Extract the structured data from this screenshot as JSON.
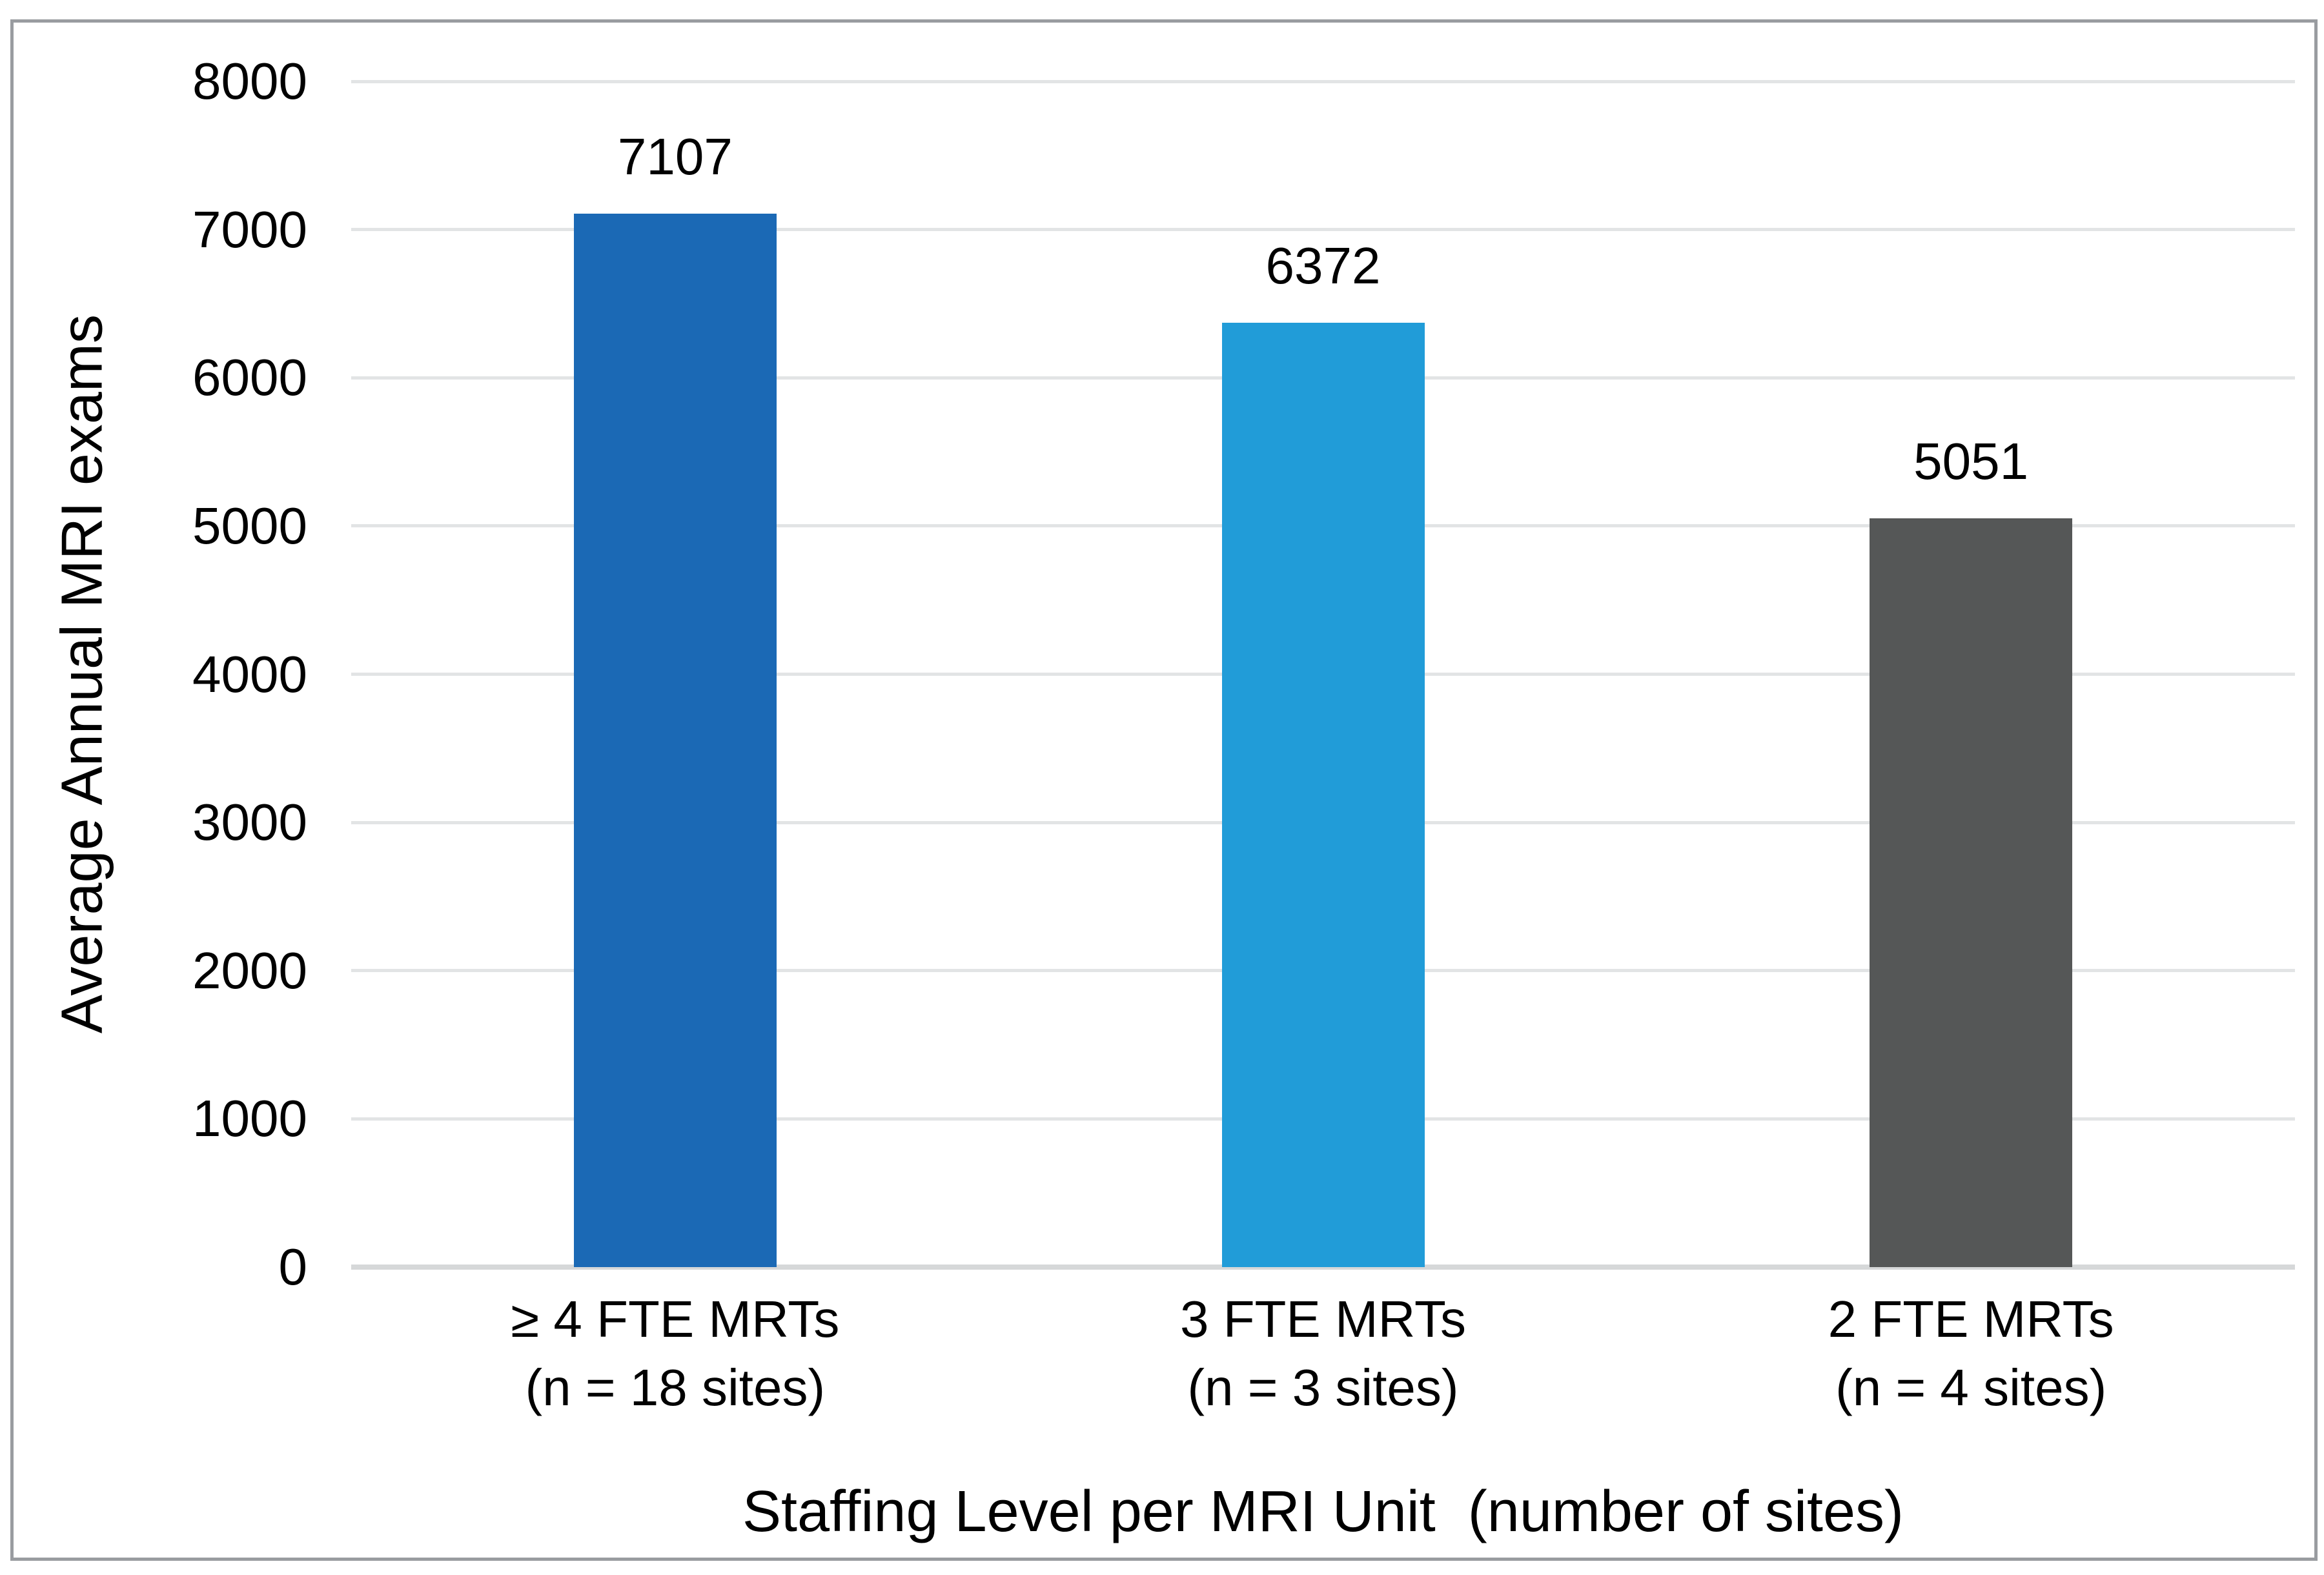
{
  "chart_data": {
    "type": "bar",
    "title": "",
    "xlabel": "Staffing Level per MRI Unit  (number of sites)",
    "ylabel": "Average Annual MRI exams",
    "ylim": [
      0,
      8000
    ],
    "yticks": [
      0,
      1000,
      2000,
      3000,
      4000,
      5000,
      6000,
      7000,
      8000
    ],
    "grid": true,
    "legend_position": "none",
    "categories": [
      {
        "label": "≥ 4 FTE MRTs",
        "sublabel": "(n = 18 sites)"
      },
      {
        "label": "3 FTE MRTs",
        "sublabel": "(n = 3 sites)"
      },
      {
        "label": "2 FTE MRTs",
        "sublabel": "(n = 4 sites)"
      }
    ],
    "values": [
      7107,
      6372,
      5051
    ],
    "data_labels": [
      "7107",
      "6372",
      "5051"
    ],
    "bar_colors": [
      "#1B69B5",
      "#219CD8",
      "#555757"
    ]
  },
  "colors": {
    "bar_dark_blue": "#1B69B5",
    "bar_light_blue": "#219CD8",
    "bar_gray": "#555757",
    "gridline": "#E2E4E5",
    "axis_line": "#D6D8D9",
    "frame_border": "#999CA0",
    "text": "#000000",
    "background": "#FFFFFF"
  }
}
